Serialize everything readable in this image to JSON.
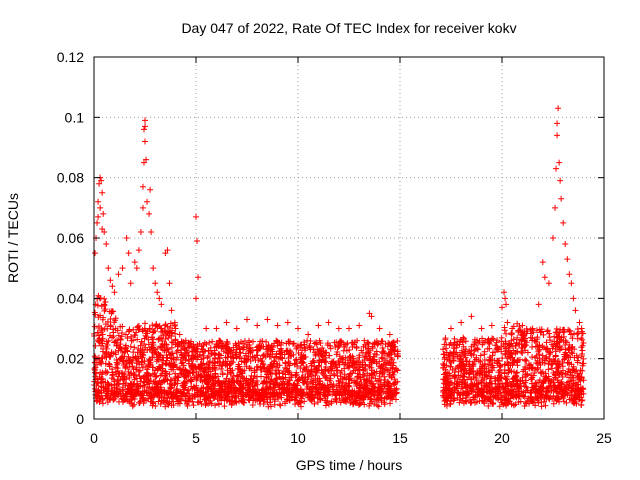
{
  "chart_data": {
    "type": "scatter",
    "title": "Day 047 of 2022, Rate Of TEC Index for receiver kokv",
    "xlabel": "GPS time / hours",
    "ylabel": "ROTI / TECUs",
    "xlim": [
      0,
      25
    ],
    "ylim": [
      0,
      0.12
    ],
    "xticks": [
      0,
      5,
      10,
      15,
      20,
      25
    ],
    "yticks": [
      0,
      0.02,
      0.04,
      0.06,
      0.08,
      0.1,
      0.12
    ],
    "xtick_labels": [
      "0",
      "5",
      "10",
      "15",
      "20",
      "25"
    ],
    "ytick_labels": [
      "0",
      "0.02",
      "0.04",
      "0.06",
      "0.08",
      "0.1",
      "0.12"
    ],
    "grid": true,
    "marker": "+",
    "color": "#ff0000",
    "density_profile": {
      "description_hours": [
        0,
        25
      ],
      "baseline_min": 0.007,
      "baseline_max": 0.022,
      "gap_hours": [
        15.0,
        17.0
      ],
      "data_ranges_hours": [
        [
          0.0,
          14.9
        ],
        [
          17.1,
          24.0
        ]
      ]
    },
    "points": [
      [
        0.05,
        0.055
      ],
      [
        0.1,
        0.06
      ],
      [
        0.15,
        0.065
      ],
      [
        0.2,
        0.072
      ],
      [
        0.25,
        0.078
      ],
      [
        0.3,
        0.08
      ],
      [
        0.35,
        0.079
      ],
      [
        0.4,
        0.075
      ],
      [
        0.45,
        0.068
      ],
      [
        0.5,
        0.062
      ],
      [
        0.3,
        0.07
      ],
      [
        0.2,
        0.067
      ],
      [
        0.4,
        0.063
      ],
      [
        0.6,
        0.058
      ],
      [
        0.7,
        0.05
      ],
      [
        0.8,
        0.046
      ],
      [
        0.9,
        0.044
      ],
      [
        1.0,
        0.042
      ],
      [
        1.2,
        0.048
      ],
      [
        1.4,
        0.05
      ],
      [
        1.6,
        0.06
      ],
      [
        1.7,
        0.055
      ],
      [
        1.8,
        0.045
      ],
      [
        2.0,
        0.052
      ],
      [
        2.1,
        0.05
      ],
      [
        2.2,
        0.056
      ],
      [
        2.3,
        0.062
      ],
      [
        2.4,
        0.07
      ],
      [
        2.45,
        0.085
      ],
      [
        2.5,
        0.092
      ],
      [
        2.5,
        0.097
      ],
      [
        2.5,
        0.099
      ],
      [
        2.45,
        0.096
      ],
      [
        2.55,
        0.086
      ],
      [
        2.4,
        0.077
      ],
      [
        2.6,
        0.072
      ],
      [
        2.7,
        0.068
      ],
      [
        2.75,
        0.076
      ],
      [
        2.8,
        0.062
      ],
      [
        2.9,
        0.05
      ],
      [
        3.0,
        0.045
      ],
      [
        3.1,
        0.042
      ],
      [
        3.2,
        0.04
      ],
      [
        3.3,
        0.038
      ],
      [
        3.5,
        0.055
      ],
      [
        3.6,
        0.056
      ],
      [
        3.7,
        0.045
      ],
      [
        3.8,
        0.036
      ],
      [
        4.0,
        0.03
      ],
      [
        4.2,
        0.028
      ],
      [
        4.5,
        0.026
      ],
      [
        5.0,
        0.067
      ],
      [
        5.05,
        0.059
      ],
      [
        5.1,
        0.047
      ],
      [
        5.0,
        0.04
      ],
      [
        5.5,
        0.03
      ],
      [
        6.0,
        0.03
      ],
      [
        6.5,
        0.032
      ],
      [
        7.0,
        0.03
      ],
      [
        7.5,
        0.033
      ],
      [
        8.0,
        0.031
      ],
      [
        8.5,
        0.033
      ],
      [
        9.0,
        0.031
      ],
      [
        9.5,
        0.032
      ],
      [
        10.0,
        0.03
      ],
      [
        10.5,
        0.028
      ],
      [
        11.0,
        0.031
      ],
      [
        11.5,
        0.032
      ],
      [
        12.0,
        0.03
      ],
      [
        12.5,
        0.03
      ],
      [
        13.0,
        0.031
      ],
      [
        13.5,
        0.035
      ],
      [
        13.6,
        0.034
      ],
      [
        14.0,
        0.03
      ],
      [
        14.5,
        0.028
      ],
      [
        17.5,
        0.03
      ],
      [
        18.0,
        0.032
      ],
      [
        18.5,
        0.034
      ],
      [
        19.0,
        0.03
      ],
      [
        19.5,
        0.031
      ],
      [
        20.0,
        0.037
      ],
      [
        20.1,
        0.042
      ],
      [
        20.15,
        0.04
      ],
      [
        20.2,
        0.038
      ],
      [
        20.5,
        0.03
      ],
      [
        21.0,
        0.028
      ],
      [
        21.5,
        0.03
      ],
      [
        21.8,
        0.038
      ],
      [
        22.0,
        0.052
      ],
      [
        22.1,
        0.047
      ],
      [
        22.3,
        0.045
      ],
      [
        22.5,
        0.06
      ],
      [
        22.6,
        0.07
      ],
      [
        22.65,
        0.083
      ],
      [
        22.7,
        0.098
      ],
      [
        22.75,
        0.103
      ],
      [
        22.7,
        0.094
      ],
      [
        22.8,
        0.085
      ],
      [
        22.85,
        0.079
      ],
      [
        22.9,
        0.073
      ],
      [
        23.0,
        0.065
      ],
      [
        23.1,
        0.058
      ],
      [
        23.2,
        0.053
      ],
      [
        23.3,
        0.048
      ],
      [
        23.4,
        0.045
      ],
      [
        23.5,
        0.04
      ],
      [
        23.6,
        0.036
      ],
      [
        23.8,
        0.032
      ],
      [
        23.9,
        0.03
      ]
    ]
  }
}
